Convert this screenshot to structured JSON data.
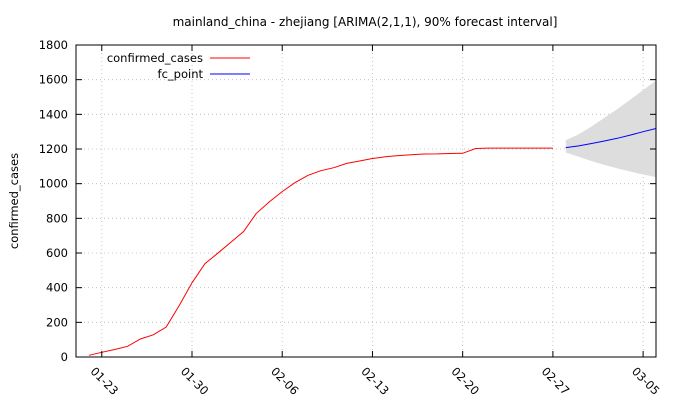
{
  "chart_data": {
    "type": "line",
    "title": "mainland_china - zhejiang [ARIMA(2,1,1), 90% forecast interval]",
    "xlabel": "",
    "ylabel": "confirmed_cases",
    "ylim": [
      0,
      1800
    ],
    "xlim": [
      "2020-01-21",
      "2020-03-06"
    ],
    "yticks": [
      0,
      200,
      400,
      600,
      800,
      1000,
      1200,
      1400,
      1600,
      1800
    ],
    "xticks": [
      "01-23",
      "01-30",
      "02-06",
      "02-13",
      "02-20",
      "02-27",
      "03-05"
    ],
    "grid": true,
    "legend_position": "top-left",
    "series": [
      {
        "name": "confirmed_cases",
        "color": "#ff0000",
        "x": [
          "2020-01-22",
          "2020-01-23",
          "2020-01-24",
          "2020-01-25",
          "2020-01-26",
          "2020-01-27",
          "2020-01-28",
          "2020-01-29",
          "2020-01-30",
          "2020-01-31",
          "2020-02-01",
          "2020-02-02",
          "2020-02-03",
          "2020-02-04",
          "2020-02-05",
          "2020-02-06",
          "2020-02-07",
          "2020-02-08",
          "2020-02-09",
          "2020-02-10",
          "2020-02-11",
          "2020-02-12",
          "2020-02-13",
          "2020-02-14",
          "2020-02-15",
          "2020-02-16",
          "2020-02-17",
          "2020-02-18",
          "2020-02-19",
          "2020-02-20",
          "2020-02-21",
          "2020-02-22",
          "2020-02-23",
          "2020-02-24",
          "2020-02-25",
          "2020-02-26",
          "2020-02-27"
        ],
        "values": [
          10,
          27,
          43,
          62,
          104,
          128,
          173,
          296,
          428,
          538,
          599,
          661,
          724,
          829,
          895,
          954,
          1006,
          1048,
          1075,
          1092,
          1117,
          1131,
          1145,
          1155,
          1162,
          1167,
          1171,
          1172,
          1174,
          1175,
          1203,
          1205,
          1205,
          1205,
          1205,
          1205,
          1205
        ]
      },
      {
        "name": "fc_point",
        "color": "#0000ff",
        "x": [
          "2020-02-28",
          "2020-02-29",
          "2020-03-01",
          "2020-03-02",
          "2020-03-03",
          "2020-03-04",
          "2020-03-05",
          "2020-03-06"
        ],
        "values": [
          1208,
          1218,
          1232,
          1246,
          1262,
          1280,
          1300,
          1318
        ]
      }
    ],
    "forecast_interval": {
      "level": "90%",
      "color": "#dddddd",
      "x": [
        "2020-02-28",
        "2020-02-29",
        "2020-03-01",
        "2020-03-02",
        "2020-03-03",
        "2020-03-04",
        "2020-03-05",
        "2020-03-06"
      ],
      "lower": [
        1180,
        1155,
        1130,
        1108,
        1088,
        1070,
        1053,
        1038
      ],
      "upper": [
        1250,
        1285,
        1330,
        1380,
        1430,
        1485,
        1540,
        1595
      ]
    }
  }
}
